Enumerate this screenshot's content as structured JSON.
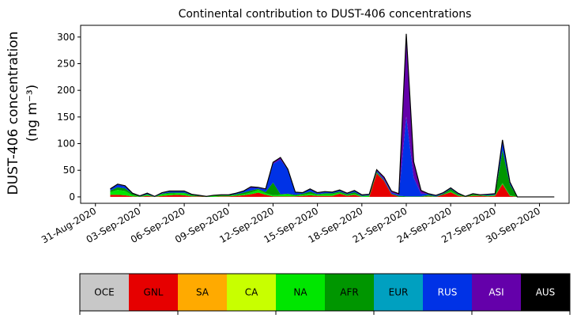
{
  "chart_data": {
    "type": "area",
    "title": "Continental contribution to DUST-406 concentrations",
    "ylabel_line1": "DUST-406 concentration",
    "ylabel_line2": "(ng m⁻³)",
    "xlabel": "",
    "stacked": true,
    "ylim": [
      -12,
      322
    ],
    "yticks": [
      0,
      50,
      100,
      150,
      200,
      250,
      300
    ],
    "xlim": [
      "2020-08-30",
      "2020-10-02"
    ],
    "xticks": [
      "2020-08-31",
      "2020-09-03",
      "2020-09-06",
      "2020-09-09",
      "2020-09-12",
      "2020-09-15",
      "2020-09-18",
      "2020-09-21",
      "2020-09-24",
      "2020-09-27",
      "2020-09-30"
    ],
    "xtick_labels": [
      "31-Aug-2020",
      "03-Sep-2020",
      "06-Sep-2020",
      "09-Sep-2020",
      "12-Sep-2020",
      "15-Sep-2020",
      "18-Sep-2020",
      "21-Sep-2020",
      "24-Sep-2020",
      "27-Sep-2020",
      "30-Sep-2020"
    ],
    "x": [
      "2020-09-01",
      "2020-09-01T12:00",
      "2020-09-02",
      "2020-09-02T12:00",
      "2020-09-03",
      "2020-09-03T12:00",
      "2020-09-04",
      "2020-09-04T12:00",
      "2020-09-05",
      "2020-09-05T12:00",
      "2020-09-06",
      "2020-09-06T12:00",
      "2020-09-07",
      "2020-09-07T12:00",
      "2020-09-08",
      "2020-09-08T12:00",
      "2020-09-09",
      "2020-09-09T12:00",
      "2020-09-10",
      "2020-09-10T12:00",
      "2020-09-11",
      "2020-09-11T12:00",
      "2020-09-12",
      "2020-09-12T12:00",
      "2020-09-13",
      "2020-09-13T12:00",
      "2020-09-14",
      "2020-09-14T12:00",
      "2020-09-15",
      "2020-09-15T12:00",
      "2020-09-16",
      "2020-09-16T12:00",
      "2020-09-17",
      "2020-09-17T12:00",
      "2020-09-18",
      "2020-09-18T12:00",
      "2020-09-19",
      "2020-09-19T12:00",
      "2020-09-20",
      "2020-09-20T12:00",
      "2020-09-21",
      "2020-09-21T12:00",
      "2020-09-22",
      "2020-09-22T12:00",
      "2020-09-23",
      "2020-09-23T12:00",
      "2020-09-24",
      "2020-09-24T12:00",
      "2020-09-25",
      "2020-09-25T12:00",
      "2020-09-26",
      "2020-09-26T12:00",
      "2020-09-27",
      "2020-09-27T12:00",
      "2020-09-28",
      "2020-09-28T12:00",
      "2020-09-29",
      "2020-09-29T12:00",
      "2020-09-30",
      "2020-09-30T12:00",
      "2020-10-01"
    ],
    "series": [
      {
        "name": "OCE",
        "color": "#c8c8c8",
        "values": [
          0,
          0,
          0,
          0,
          0,
          0,
          0,
          0,
          0,
          0,
          0,
          0,
          0,
          0,
          0,
          0,
          0,
          0,
          0,
          0,
          0,
          0,
          0,
          0,
          0,
          0,
          0,
          0,
          0,
          0,
          0,
          0,
          0,
          0,
          0,
          0,
          0,
          0,
          0,
          0,
          0,
          0,
          0,
          0,
          0,
          0,
          0,
          0,
          0,
          0,
          0,
          0,
          0,
          0,
          0,
          0,
          0,
          0,
          0,
          0,
          0
        ]
      },
      {
        "name": "GNL",
        "color": "#e60000",
        "values": [
          4,
          4,
          3,
          1,
          0,
          2,
          0,
          2,
          3,
          4,
          3,
          1,
          1,
          0,
          0,
          1,
          1,
          2,
          3,
          5,
          8,
          4,
          1,
          1,
          1,
          1,
          2,
          3,
          2,
          2,
          2,
          6,
          2,
          4,
          0,
          0,
          44,
          30,
          5,
          0,
          0,
          0,
          0,
          1,
          0,
          4,
          9,
          2,
          0,
          2,
          2,
          1,
          2,
          24,
          2,
          0,
          0,
          0,
          0,
          0,
          0
        ]
      },
      {
        "name": "SA",
        "color": "#ffaa00",
        "values": [
          0,
          0,
          0,
          0,
          0,
          0,
          0,
          0,
          0,
          0,
          0,
          0,
          0,
          0,
          0,
          0,
          0,
          0,
          0,
          0,
          0,
          0,
          0,
          0,
          0,
          0,
          0,
          0,
          0,
          0,
          0,
          0,
          0,
          0,
          0,
          0,
          0,
          0,
          0,
          0,
          0,
          0,
          0,
          0,
          0,
          0,
          0,
          0,
          0,
          0,
          0,
          0,
          0,
          0,
          0,
          0,
          0,
          0,
          0,
          0,
          0
        ]
      },
      {
        "name": "CA",
        "color": "#c8ff00",
        "values": [
          0,
          0,
          0,
          0,
          0,
          0,
          0,
          0,
          0,
          0,
          0,
          0,
          0,
          0,
          0,
          0,
          0,
          0,
          0,
          0,
          0,
          0,
          0,
          0,
          0,
          0,
          0,
          0,
          0,
          0,
          0,
          0,
          0,
          0,
          0,
          0,
          0,
          0,
          0,
          0,
          0,
          0,
          0,
          0,
          0,
          0,
          0,
          0,
          0,
          0,
          0,
          0,
          0,
          0,
          0,
          0,
          0,
          0,
          0,
          0,
          0
        ]
      },
      {
        "name": "NA",
        "color": "#00e600",
        "values": [
          5,
          9,
          8,
          2,
          0,
          2,
          0,
          3,
          3,
          3,
          4,
          1,
          0,
          0,
          2,
          1,
          1,
          1,
          2,
          3,
          5,
          3,
          2,
          3,
          4,
          1,
          2,
          3,
          2,
          3,
          3,
          2,
          1,
          2,
          1,
          2,
          1,
          0,
          0,
          0,
          0,
          0,
          0,
          1,
          0,
          0,
          2,
          1,
          0,
          1,
          1,
          1,
          1,
          2,
          1,
          0,
          0,
          0,
          0,
          0,
          0
        ]
      },
      {
        "name": "AFR",
        "color": "#009600",
        "values": [
          3,
          5,
          5,
          3,
          1,
          1,
          0,
          1,
          2,
          1,
          1,
          2,
          1,
          1,
          1,
          1,
          1,
          2,
          3,
          4,
          2,
          2,
          24,
          1,
          1,
          2,
          2,
          4,
          1,
          2,
          2,
          2,
          2,
          3,
          1,
          1,
          2,
          1,
          1,
          2,
          1,
          1,
          1,
          2,
          1,
          2,
          4,
          2,
          1,
          2,
          0,
          1,
          1,
          62,
          20,
          0,
          0,
          0,
          0,
          0,
          0
        ]
      },
      {
        "name": "EUR",
        "color": "#00a0c0",
        "values": [
          0,
          0,
          0,
          0,
          0,
          0,
          0,
          0,
          0,
          0,
          0,
          0,
          0,
          0,
          0,
          0,
          0,
          0,
          0,
          0,
          0,
          0,
          0,
          0,
          0,
          0,
          0,
          0,
          0,
          0,
          0,
          0,
          0,
          0,
          0,
          0,
          0,
          0,
          0,
          0,
          0,
          0,
          0,
          0,
          0,
          0,
          0,
          0,
          0,
          0,
          0,
          0,
          0,
          0,
          0,
          0,
          0,
          0,
          0,
          0,
          0
        ]
      },
      {
        "name": "RUS",
        "color": "#0032e6",
        "values": [
          2,
          5,
          4,
          1,
          1,
          2,
          1,
          1,
          2,
          2,
          2,
          1,
          1,
          0,
          0,
          1,
          1,
          2,
          3,
          5,
          2,
          5,
          35,
          65,
          45,
          5,
          2,
          4,
          2,
          2,
          2,
          2,
          1,
          2,
          1,
          1,
          2,
          2,
          2,
          2,
          150,
          35,
          5,
          2,
          1,
          1,
          1,
          1,
          0,
          1,
          1,
          2,
          2,
          15,
          4,
          0,
          0,
          0,
          0,
          0,
          0
        ]
      },
      {
        "name": "ASI",
        "color": "#6400aa",
        "values": [
          1,
          1,
          1,
          0,
          0,
          0,
          0,
          1,
          1,
          1,
          1,
          0,
          0,
          0,
          0,
          0,
          0,
          0,
          0,
          2,
          1,
          1,
          3,
          4,
          1,
          0,
          0,
          1,
          1,
          1,
          0,
          1,
          1,
          1,
          1,
          1,
          2,
          4,
          3,
          2,
          155,
          30,
          6,
          0,
          1,
          1,
          1,
          1,
          0,
          0,
          0,
          0,
          0,
          4,
          1,
          0,
          0,
          0,
          0,
          0,
          0
        ]
      },
      {
        "name": "AUS",
        "color": "#000000",
        "values": [
          0,
          0,
          0,
          0,
          0,
          0,
          0,
          0,
          0,
          0,
          0,
          0,
          0,
          0,
          0,
          0,
          0,
          0,
          0,
          0,
          0,
          0,
          0,
          0,
          0,
          0,
          0,
          0,
          0,
          0,
          0,
          0,
          0,
          0,
          0,
          0,
          0,
          0,
          0,
          0,
          0,
          0,
          0,
          0,
          0,
          0,
          0,
          0,
          0,
          0,
          0,
          0,
          0,
          0,
          0,
          0,
          0,
          0,
          0,
          0,
          0
        ]
      }
    ],
    "legend": {
      "placement": "bottom-colorbar",
      "labels": [
        "OCE",
        "GNL",
        "SA",
        "CA",
        "NA",
        "AFR",
        "EUR",
        "RUS",
        "ASI",
        "AUS"
      ]
    }
  }
}
